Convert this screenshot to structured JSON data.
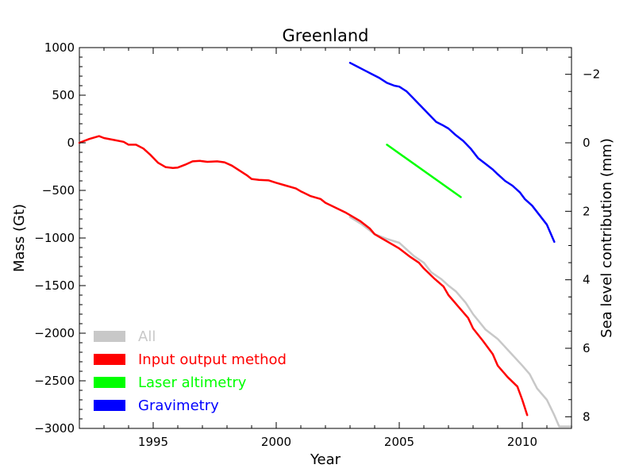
{
  "chart_data": {
    "type": "line",
    "title": "Greenland",
    "xlabel": "Year",
    "ylabel": "Mass (Gt)",
    "y2label": "Sea level contribution (mm)",
    "xlim": [
      1992,
      2012
    ],
    "ylim": [
      -3000,
      1000
    ],
    "y2_reversed": true,
    "xticks": [
      "1995",
      "2000",
      "2005",
      "2010"
    ],
    "xtick_values": [
      1995,
      2000,
      2005,
      2010
    ],
    "yticks": [
      "1000",
      "500",
      "0",
      "−500",
      "−1000",
      "−1500",
      "−2000",
      "−2500",
      "−3000"
    ],
    "ytick_values": [
      1000,
      500,
      0,
      -500,
      -1000,
      -1500,
      -2000,
      -2500,
      -3000
    ],
    "y2ticks": [
      "−2",
      "0",
      "2",
      "4",
      "6",
      "8"
    ],
    "y2tick_values": [
      -2,
      0,
      2,
      4,
      6,
      8
    ],
    "y2_mm_per_gt": -0.00278,
    "legend_position": "lower-left",
    "grid": false,
    "series": [
      {
        "name": "All",
        "color": "#c8c8c8",
        "x": [
          2003.0,
          2003.5,
          2004.0,
          2004.5,
          2005.0,
          2005.3,
          2005.6,
          2006.0,
          2006.3,
          2006.7,
          2007.0,
          2007.3,
          2007.7,
          2008.0,
          2008.5,
          2009.0,
          2009.5,
          2010.0,
          2010.3,
          2010.6,
          2011.0,
          2011.3,
          2011.5,
          2012.0
        ],
        "y": [
          -780,
          -860,
          -960,
          -1010,
          -1050,
          -1120,
          -1190,
          -1260,
          -1360,
          -1430,
          -1500,
          -1560,
          -1680,
          -1800,
          -1960,
          -2060,
          -2200,
          -2340,
          -2430,
          -2580,
          -2700,
          -2860,
          -2980,
          -2980
        ]
      },
      {
        "name": "Input output method",
        "color": "#ff0000",
        "x": [
          1992.0,
          1992.4,
          1992.8,
          1993.0,
          1993.4,
          1993.8,
          1994.0,
          1994.3,
          1994.6,
          1994.9,
          1995.2,
          1995.5,
          1995.8,
          1996.0,
          1996.3,
          1996.6,
          1996.9,
          1997.2,
          1997.6,
          1997.9,
          1998.2,
          1998.5,
          1998.8,
          1999.0,
          1999.3,
          1999.7,
          2000.0,
          2000.4,
          2000.8,
          2001.0,
          2001.4,
          2001.8,
          2002.0,
          2002.4,
          2002.8,
          2003.0,
          2003.4,
          2003.8,
          2004.0,
          2004.4,
          2004.8,
          2005.0,
          2005.4,
          2005.8,
          2006.0,
          2006.4,
          2006.8,
          2007.0,
          2007.4,
          2007.8,
          2008.0,
          2008.4,
          2008.8,
          2009.0,
          2009.4,
          2009.8,
          2010.0,
          2010.2
        ],
        "y": [
          0,
          40,
          70,
          50,
          30,
          10,
          -20,
          -20,
          -60,
          -130,
          -210,
          -255,
          -265,
          -260,
          -230,
          -195,
          -190,
          -200,
          -195,
          -205,
          -240,
          -290,
          -340,
          -380,
          -390,
          -395,
          -420,
          -450,
          -480,
          -510,
          -560,
          -590,
          -630,
          -680,
          -730,
          -760,
          -820,
          -900,
          -960,
          -1020,
          -1080,
          -1110,
          -1190,
          -1260,
          -1320,
          -1420,
          -1510,
          -1600,
          -1720,
          -1840,
          -1950,
          -2080,
          -2220,
          -2340,
          -2460,
          -2560,
          -2700,
          -2860
        ]
      },
      {
        "name": "Laser altimetry",
        "color": "#00ff00",
        "x": [
          2004.5,
          2007.5
        ],
        "y": [
          -20,
          -570
        ]
      },
      {
        "name": "Gravimetry",
        "color": "#0000ff",
        "x": [
          2003.0,
          2003.3,
          2003.6,
          2003.9,
          2004.2,
          2004.5,
          2004.8,
          2005.0,
          2005.3,
          2005.6,
          2005.9,
          2006.2,
          2006.5,
          2006.8,
          2007.0,
          2007.3,
          2007.6,
          2007.9,
          2008.2,
          2008.5,
          2008.8,
          2009.0,
          2009.3,
          2009.6,
          2009.9,
          2010.1,
          2010.4,
          2010.7,
          2011.0,
          2011.3
        ],
        "y": [
          840,
          800,
          760,
          720,
          680,
          630,
          600,
          590,
          540,
          460,
          380,
          300,
          220,
          180,
          150,
          80,
          20,
          -60,
          -160,
          -220,
          -280,
          -330,
          -400,
          -450,
          -520,
          -590,
          -660,
          -760,
          -860,
          -1040
        ]
      }
    ]
  }
}
